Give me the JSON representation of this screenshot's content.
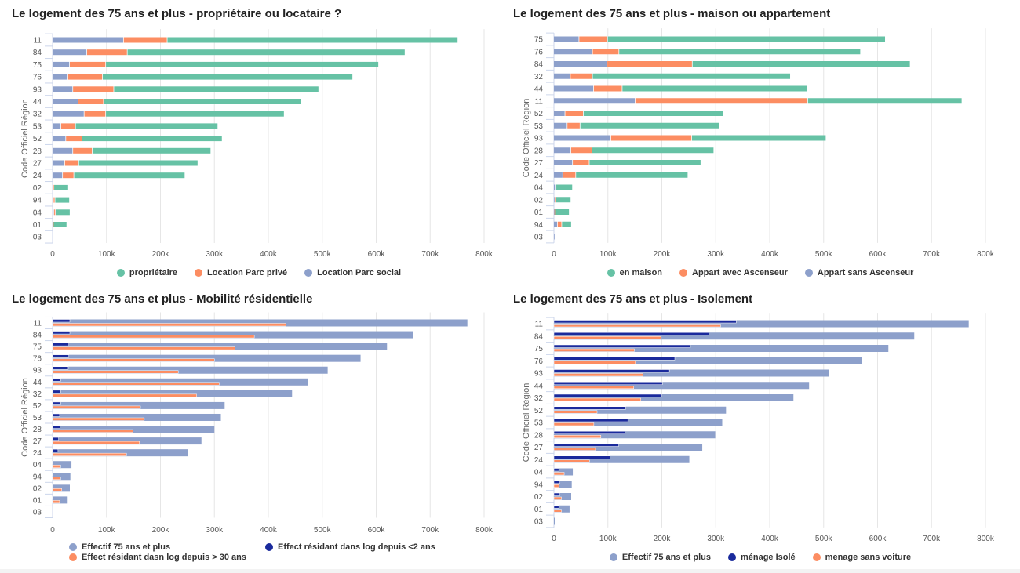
{
  "chart_data": [
    {
      "type": "bar",
      "orientation": "horizontal",
      "stacked": true,
      "title": "Le logement des 75 ans et plus - propriétaire ou locataire ?",
      "ylabel": "Code Officiel Région",
      "xlim": [
        0,
        800000
      ],
      "xticks": [
        "0",
        "100k",
        "200k",
        "300k",
        "400k",
        "500k",
        "600k",
        "700k",
        "800k"
      ],
      "grid": true,
      "legend": "bottom",
      "categories": [
        "11",
        "84",
        "75",
        "76",
        "93",
        "44",
        "32",
        "53",
        "52",
        "28",
        "27",
        "24",
        "02",
        "94",
        "04",
        "01",
        "03"
      ],
      "series": [
        {
          "name": "propriétaire",
          "color": "#66c2a5",
          "values": [
            539000,
            515000,
            506000,
            464000,
            380000,
            366000,
            331000,
            264000,
            260000,
            220000,
            221000,
            206000,
            27000,
            27000,
            27000,
            25000,
            1000
          ]
        },
        {
          "name": "Location Parc privé",
          "color": "#fc8d62",
          "values": [
            81000,
            75000,
            67000,
            64000,
            76000,
            47000,
            40000,
            27000,
            30000,
            36000,
            26000,
            21000,
            1000,
            3000,
            3000,
            1000,
            0
          ]
        },
        {
          "name": "Location Parc social",
          "color": "#8da0cb",
          "values": [
            132000,
            64000,
            32000,
            29000,
            38000,
            48000,
            59000,
            16000,
            25000,
            38000,
            23000,
            19000,
            2000,
            2000,
            3000,
            1000,
            0
          ]
        }
      ]
    },
    {
      "type": "bar",
      "orientation": "horizontal",
      "stacked": true,
      "title": "Le logement des 75 ans et plus - maison ou appartement",
      "ylabel": "Code Officiel Région",
      "xlim": [
        0,
        800000
      ],
      "xticks": [
        "0",
        "100k",
        "200k",
        "300k",
        "400k",
        "500k",
        "600k",
        "700k",
        "800k"
      ],
      "grid": true,
      "legend": "bottom",
      "categories": [
        "75",
        "76",
        "84",
        "32",
        "44",
        "11",
        "52",
        "53",
        "93",
        "28",
        "27",
        "24",
        "04",
        "02",
        "01",
        "94",
        "03"
      ],
      "series": [
        {
          "name": "en maison",
          "color": "#66c2a5",
          "values": [
            515000,
            448000,
            404000,
            367000,
            343000,
            286000,
            259000,
            259000,
            249000,
            226000,
            207000,
            208000,
            31000,
            29000,
            27000,
            18000,
            0
          ]
        },
        {
          "name": "Appart avec Ascenseur",
          "color": "#fc8d62",
          "values": [
            53000,
            49000,
            158000,
            41000,
            53000,
            320000,
            34000,
            24000,
            150000,
            39000,
            31000,
            24000,
            1000,
            1000,
            1000,
            8000,
            0
          ]
        },
        {
          "name": "Appart sans Ascenseur",
          "color": "#8da0cb",
          "values": [
            47000,
            72000,
            99000,
            31000,
            74000,
            151000,
            21000,
            25000,
            106000,
            32000,
            35000,
            17000,
            3000,
            2000,
            1000,
            7000,
            1000
          ]
        }
      ]
    },
    {
      "type": "bar",
      "orientation": "horizontal",
      "stacked": false,
      "title": "Le logement des 75 ans et plus - Mobilité résidentielle",
      "ylabel": "Code Officiel Région",
      "xlim": [
        0,
        800000
      ],
      "xticks": [
        "0",
        "100k",
        "200k",
        "300k",
        "400k",
        "500k",
        "600k",
        "700k",
        "800k"
      ],
      "grid": true,
      "legend": "bottom",
      "categories": [
        "11",
        "84",
        "75",
        "76",
        "93",
        "44",
        "32",
        "52",
        "53",
        "28",
        "27",
        "24",
        "04",
        "94",
        "02",
        "01",
        "03"
      ],
      "series": [
        {
          "name": "Effectif 75 ans et plus",
          "color": "#8da0cb",
          "values": [
            769000,
            669000,
            620000,
            571000,
            510000,
            473000,
            444000,
            319000,
            312000,
            300000,
            276000,
            251000,
            35000,
            33000,
            32000,
            28000,
            1000
          ]
        },
        {
          "name": "Effect résidant dans log depuis <2 ans",
          "color": "#1a2a9c",
          "values": [
            32000,
            32000,
            30000,
            30000,
            29000,
            15000,
            15000,
            15000,
            13000,
            14000,
            11000,
            10000,
            1000,
            1000,
            1000,
            1000,
            0
          ]
        },
        {
          "name": "Effect résidant dasn log depuis > 30 ans",
          "color": "#fc8d62",
          "values": [
            433000,
            374000,
            338000,
            300000,
            233000,
            309000,
            267000,
            163000,
            170000,
            149000,
            161000,
            137000,
            15000,
            15000,
            17000,
            13000,
            0
          ]
        }
      ]
    },
    {
      "type": "bar",
      "orientation": "horizontal",
      "stacked": false,
      "title": "Le logement des 75 ans et plus - Isolement",
      "ylabel": "Code Officiel Région",
      "xlim": [
        0,
        800000
      ],
      "xticks": [
        "0",
        "100k",
        "200k",
        "300k",
        "400k",
        "500k",
        "600k",
        "700k",
        "800k"
      ],
      "grid": true,
      "legend": "bottom",
      "categories": [
        "11",
        "84",
        "75",
        "76",
        "93",
        "44",
        "32",
        "52",
        "53",
        "28",
        "27",
        "24",
        "04",
        "94",
        "02",
        "01",
        "03"
      ],
      "series": [
        {
          "name": "Effectif 75 ans et plus",
          "color": "#8da0cb",
          "values": [
            769000,
            668000,
            620000,
            571000,
            510000,
            473000,
            444000,
            319000,
            312000,
            299000,
            275000,
            251000,
            35000,
            33000,
            32000,
            29000,
            1000
          ]
        },
        {
          "name": "ménage Isolé",
          "color": "#1a2a9c",
          "values": [
            338000,
            287000,
            253000,
            224000,
            214000,
            201000,
            200000,
            133000,
            137000,
            132000,
            120000,
            104000,
            9000,
            11000,
            11000,
            9000,
            0
          ]
        },
        {
          "name": "menage sans voiture",
          "color": "#fc8d62",
          "values": [
            309000,
            199000,
            149000,
            151000,
            165000,
            148000,
            161000,
            80000,
            74000,
            87000,
            77000,
            66000,
            19000,
            9000,
            14000,
            14000,
            0
          ]
        }
      ]
    }
  ]
}
